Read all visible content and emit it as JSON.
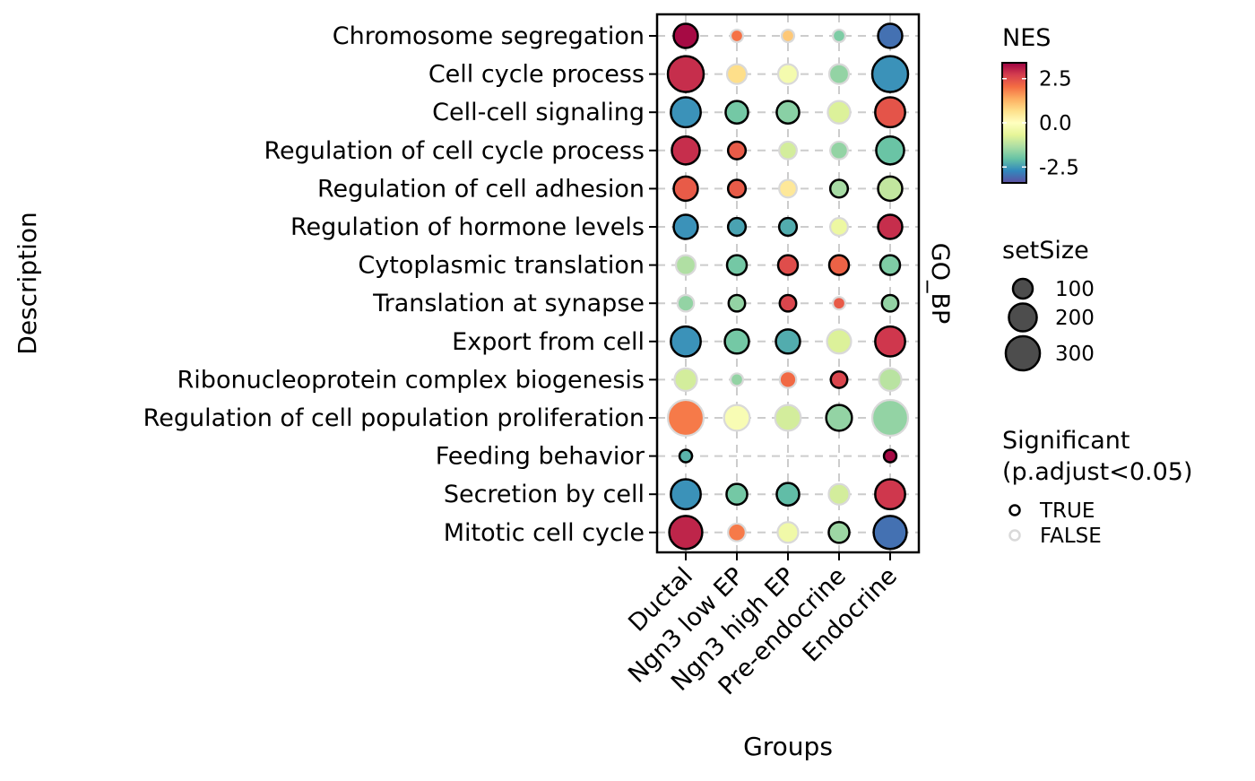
{
  "chart_data": {
    "type": "dotplot",
    "xlabel": "Groups",
    "ylabel": "Description",
    "facet_label": "GO_BP",
    "groups": [
      "Ductal",
      "Ngn3 low EP",
      "Ngn3 high EP",
      "Pre-endocrine",
      "Endocrine"
    ],
    "descriptions": [
      "Chromosome segregation",
      "Cell cycle process",
      "Cell-cell signaling",
      "Regulation of cell cycle process",
      "Regulation of cell adhesion",
      "Regulation of hormone levels",
      "Cytoplasmic translation",
      "Translation at synapse",
      "Export from cell",
      "Ribonucleoprotein complex biogenesis",
      "Regulation of cell population proliferation",
      "Feeding behavior",
      "Secretion by cell",
      "Mitotic cell cycle"
    ],
    "nes": [
      [
        3.3,
        2.0,
        1.0,
        -1.8,
        -3.0
      ],
      [
        2.9,
        0.7,
        -0.3,
        -1.6,
        -2.6
      ],
      [
        -2.6,
        -1.9,
        -1.7,
        -0.8,
        2.4
      ],
      [
        2.9,
        2.3,
        -0.9,
        -1.6,
        -2.0
      ],
      [
        2.3,
        2.3,
        0.5,
        -1.4,
        -1.1
      ],
      [
        -2.6,
        -2.4,
        -2.3,
        -0.5,
        2.9
      ],
      [
        -1.3,
        -1.9,
        2.5,
        2.2,
        -1.8
      ],
      [
        -1.6,
        -1.6,
        2.6,
        2.3,
        -1.6
      ],
      [
        -2.6,
        -1.9,
        -2.3,
        -0.8,
        2.8
      ],
      [
        -0.9,
        -1.6,
        2.1,
        2.6,
        -1.2
      ],
      [
        1.9,
        -0.2,
        -0.9,
        -1.6,
        -1.6
      ],
      [
        -2.2,
        null,
        null,
        null,
        3.3
      ],
      [
        -2.6,
        -1.9,
        -2.1,
        -0.9,
        2.8
      ],
      [
        3.0,
        1.9,
        -0.4,
        -1.5,
        -3.0
      ]
    ],
    "set_size": [
      [
        150,
        40,
        40,
        40,
        150
      ],
      [
        330,
        100,
        100,
        100,
        330
      ],
      [
        230,
        130,
        130,
        130,
        230
      ],
      [
        200,
        80,
        80,
        80,
        200
      ],
      [
        150,
        80,
        80,
        80,
        150
      ],
      [
        150,
        80,
        80,
        80,
        150
      ],
      [
        100,
        100,
        100,
        100,
        100
      ],
      [
        70,
        70,
        70,
        40,
        70
      ],
      [
        230,
        150,
        150,
        150,
        230
      ],
      [
        130,
        40,
        70,
        70,
        130
      ],
      [
        330,
        170,
        170,
        170,
        330
      ],
      [
        40,
        null,
        null,
        null,
        40
      ],
      [
        230,
        110,
        130,
        110,
        230
      ],
      [
        280,
        80,
        110,
        110,
        280
      ]
    ],
    "significant": [
      [
        true,
        false,
        false,
        false,
        true
      ],
      [
        true,
        false,
        false,
        false,
        true
      ],
      [
        true,
        true,
        true,
        false,
        true
      ],
      [
        true,
        true,
        false,
        false,
        true
      ],
      [
        true,
        true,
        false,
        true,
        true
      ],
      [
        true,
        true,
        true,
        false,
        true
      ],
      [
        false,
        true,
        true,
        true,
        true
      ],
      [
        false,
        true,
        true,
        false,
        true
      ],
      [
        true,
        true,
        true,
        false,
        true
      ],
      [
        false,
        false,
        false,
        true,
        false
      ],
      [
        false,
        false,
        false,
        true,
        false
      ],
      [
        true,
        null,
        null,
        null,
        true
      ],
      [
        true,
        true,
        true,
        false,
        true
      ],
      [
        true,
        false,
        false,
        true,
        true
      ]
    ],
    "colorbar": {
      "title": "NES",
      "ticks": [
        "2.5",
        "0.0",
        "-2.5"
      ],
      "tick_values": [
        2.5,
        0.0,
        -2.5
      ],
      "range": [
        -3.4,
        3.4
      ],
      "palette": [
        "#5E4FA2",
        "#3288BD",
        "#66C2A5",
        "#ABDDA4",
        "#E6F598",
        "#FFFFBF",
        "#FEE08B",
        "#FDAE61",
        "#F46D43",
        "#D53E4F",
        "#9E0142"
      ]
    },
    "size_legend": {
      "title": "setSize",
      "labels": [
        "100",
        "200",
        "300"
      ],
      "values": [
        100,
        200,
        300
      ]
    },
    "significance_legend": {
      "title_line1": "Significant",
      "title_line2": "(p.adjust<0.05)",
      "labels": [
        "TRUE",
        "FALSE"
      ],
      "colors": [
        "#000000",
        "#D9D9D9"
      ]
    }
  }
}
